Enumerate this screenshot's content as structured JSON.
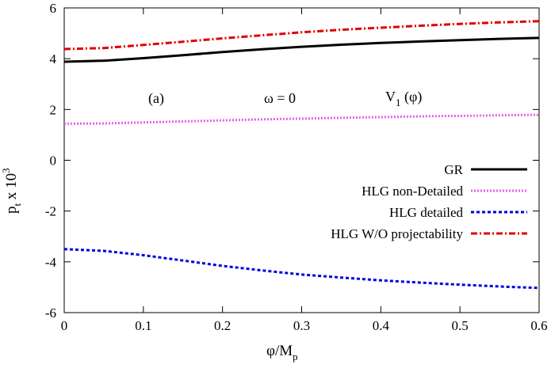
{
  "chart_data": {
    "type": "line",
    "title": "",
    "xlabel": {
      "main": "φ/M",
      "sub": "p"
    },
    "ylabel": {
      "main": "p",
      "sub": "t",
      "mid": " x 10",
      "sup": "3"
    },
    "xlim": [
      0,
      0.6
    ],
    "ylim": [
      -6,
      6
    ],
    "xticks": [
      0,
      0.1,
      0.2,
      0.3,
      0.4,
      0.5,
      0.6
    ],
    "xtick_labels": [
      "0",
      "0.1",
      "0.2",
      "0.3",
      "0.4",
      "0.5",
      "0.6"
    ],
    "yticks": [
      -6,
      -4,
      -2,
      0,
      2,
      4,
      6
    ],
    "ytick_labels": [
      "-6",
      "-4",
      "-2",
      "0",
      "2",
      "4",
      "6"
    ],
    "grid": false,
    "legend_position": "right",
    "annotations": {
      "panel": "(a)",
      "omega": "ω = 0",
      "potential_main": "V",
      "potential_sub": "1",
      "potential_arg": " (φ)"
    },
    "x": [
      0,
      0.05,
      0.1,
      0.15,
      0.2,
      0.25,
      0.3,
      0.35,
      0.4,
      0.45,
      0.5,
      0.55,
      0.6
    ],
    "series": [
      {
        "name": "GR",
        "color": "#000000",
        "style": "solid",
        "values": [
          3.88,
          3.92,
          4.02,
          4.14,
          4.26,
          4.37,
          4.47,
          4.55,
          4.62,
          4.68,
          4.73,
          4.78,
          4.82
        ]
      },
      {
        "name": "HLG non-Detailed",
        "color": "#e85ee8",
        "style": "dotted",
        "values": [
          1.44,
          1.45,
          1.49,
          1.53,
          1.57,
          1.61,
          1.64,
          1.67,
          1.7,
          1.73,
          1.75,
          1.77,
          1.79
        ]
      },
      {
        "name": "HLG detailed",
        "color": "#0000e0",
        "style": "dashed",
        "values": [
          -3.5,
          -3.57,
          -3.74,
          -3.95,
          -4.16,
          -4.34,
          -4.5,
          -4.62,
          -4.73,
          -4.82,
          -4.9,
          -4.97,
          -5.03
        ]
      },
      {
        "name": "HLG W/O projectability",
        "color": "#e00000",
        "style": "dashdot",
        "values": [
          4.38,
          4.42,
          4.54,
          4.67,
          4.8,
          4.92,
          5.04,
          5.14,
          5.22,
          5.3,
          5.37,
          5.43,
          5.48
        ]
      }
    ]
  }
}
